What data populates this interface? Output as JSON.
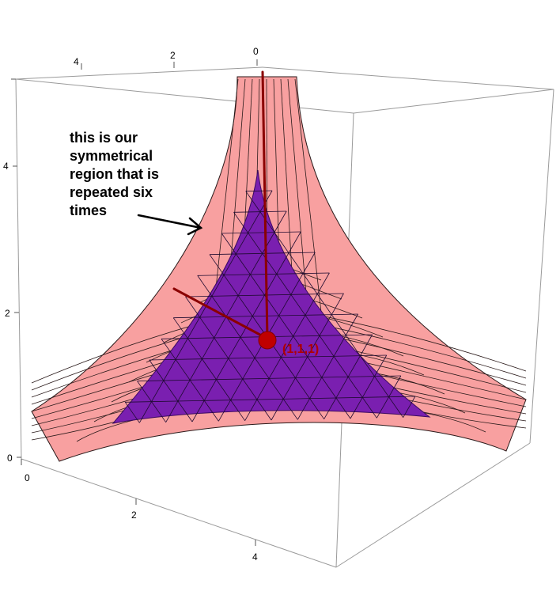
{
  "axes": {
    "top_ticks": [
      "4",
      "2",
      "0"
    ],
    "left_ticks": [
      "4",
      "2",
      "0"
    ],
    "bottom_ticks": [
      "0",
      "2",
      "4"
    ]
  },
  "annotation": {
    "lines": [
      "this is our",
      "symmetrical",
      "region that is",
      "repeated six",
      "times"
    ]
  },
  "point": {
    "label": "(1,1,1)"
  },
  "colors": {
    "surface": "#f8a0a0",
    "region": "#7a1fb0",
    "grid": "#2a1a1a",
    "axis_lines": "#8b0000",
    "box": "#9a9a9a"
  }
}
